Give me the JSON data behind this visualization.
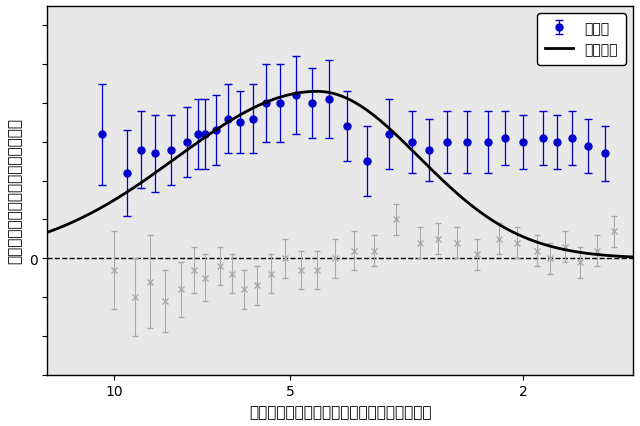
{
  "xlabel": "離れた二つの銀河間の距離（単位：億光年）",
  "ylabel": "離れた二つの銀河形状の相関の強さ",
  "legend_theory": "理論曲線",
  "legend_measured": "測定点",
  "xmin": 1.3,
  "xmax": 13.0,
  "blue_color": "#0000cc",
  "gray_color": "#aaaaaa",
  "theory_color": "#000000",
  "background_color": "#e8e8e8",
  "dashed_color": "#000000",
  "blue_x": [
    10.5,
    9.5,
    9.0,
    8.5,
    8.0,
    7.5,
    7.2,
    7.0,
    6.7,
    6.4,
    6.1,
    5.8,
    5.5,
    5.2,
    4.9,
    4.6,
    4.3,
    4.0,
    3.7,
    3.4,
    3.1,
    2.9,
    2.7,
    2.5,
    2.3,
    2.15,
    2.0,
    1.85,
    1.75,
    1.65,
    1.55,
    1.45
  ],
  "blue_y": [
    0.32,
    0.22,
    0.28,
    0.27,
    0.28,
    0.3,
    0.32,
    0.32,
    0.33,
    0.36,
    0.35,
    0.36,
    0.4,
    0.4,
    0.42,
    0.4,
    0.41,
    0.34,
    0.25,
    0.32,
    0.3,
    0.28,
    0.3,
    0.3,
    0.3,
    0.31,
    0.3,
    0.31,
    0.3,
    0.31,
    0.29,
    0.27
  ],
  "blue_yerr": [
    0.13,
    0.11,
    0.1,
    0.1,
    0.09,
    0.09,
    0.09,
    0.09,
    0.09,
    0.09,
    0.08,
    0.09,
    0.1,
    0.1,
    0.1,
    0.09,
    0.1,
    0.09,
    0.09,
    0.09,
    0.08,
    0.08,
    0.08,
    0.08,
    0.08,
    0.07,
    0.07,
    0.07,
    0.07,
    0.07,
    0.07,
    0.07
  ],
  "gray_x": [
    10.0,
    9.2,
    8.7,
    8.2,
    7.7,
    7.3,
    7.0,
    6.6,
    6.3,
    6.0,
    5.7,
    5.4,
    5.1,
    4.8,
    4.5,
    4.2,
    3.9,
    3.6,
    3.3,
    3.0,
    2.8,
    2.6,
    2.4,
    2.2,
    2.05,
    1.9,
    1.8,
    1.7,
    1.6,
    1.5,
    1.4
  ],
  "gray_y": [
    -0.03,
    -0.1,
    -0.06,
    -0.11,
    -0.08,
    -0.03,
    -0.05,
    -0.02,
    -0.04,
    -0.08,
    -0.07,
    -0.04,
    0.0,
    -0.03,
    -0.03,
    0.0,
    0.02,
    0.02,
    0.1,
    0.04,
    0.05,
    0.04,
    0.01,
    0.05,
    0.04,
    0.02,
    0.0,
    0.03,
    -0.01,
    0.02,
    0.07
  ],
  "gray_yerr": [
    0.1,
    0.1,
    0.12,
    0.08,
    0.07,
    0.06,
    0.06,
    0.05,
    0.05,
    0.05,
    0.05,
    0.05,
    0.05,
    0.05,
    0.05,
    0.05,
    0.05,
    0.04,
    0.04,
    0.04,
    0.04,
    0.04,
    0.04,
    0.04,
    0.04,
    0.04,
    0.04,
    0.04,
    0.04,
    0.04,
    0.04
  ],
  "ylim": [
    -0.3,
    0.65
  ],
  "xticks": [
    2,
    5,
    10
  ],
  "figsize": [
    6.4,
    4.27
  ],
  "dpi": 100
}
